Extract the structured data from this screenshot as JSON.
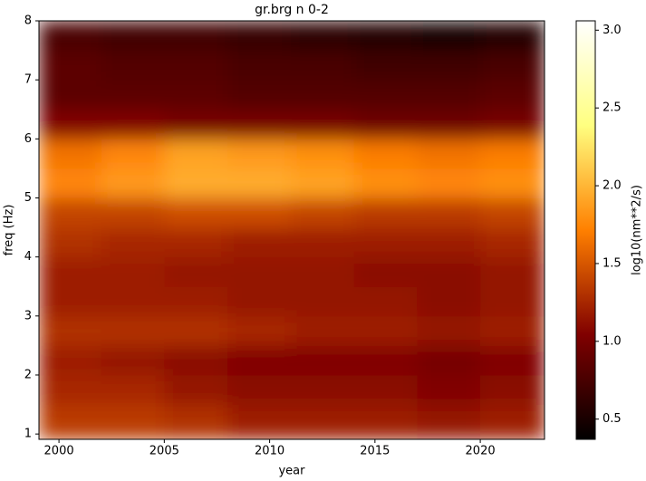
{
  "chart_data": {
    "type": "heatmap",
    "title": "gr.brg n 0-2",
    "x_label": "year",
    "y_label": "freq (Hz)",
    "colorbar_label": "log10(nm**2/s)",
    "colormap": "afmhot",
    "xlim": [
      1999.05,
      2023.05
    ],
    "ylim": [
      0.91,
      8
    ],
    "xticks": [
      2000,
      2005,
      2010,
      2015,
      2020
    ],
    "yticks": [
      1,
      2,
      3,
      4,
      5,
      6,
      7,
      8
    ],
    "clim": [
      0.37,
      3.06
    ],
    "cticks": [
      0.5,
      {
        "value": 1.0,
        "label": "1.0"
      },
      1.5,
      {
        "value": 2.0,
        "label": "2.0"
      },
      2.5,
      {
        "value": 3.0,
        "label": "3.0"
      }
    ],
    "x_edges": [
      1999.05,
      2002,
      2005,
      2008,
      2011,
      2014,
      2017,
      2020,
      2023.05
    ],
    "y_edges": [
      0.91,
      1.5,
      2,
      2.5,
      3,
      3.5,
      4,
      4.5,
      5,
      5.5,
      6,
      6.5,
      7,
      7.5,
      8
    ],
    "z": [
      [
        1.35,
        1.35,
        1.3,
        1.2,
        1.2,
        1.2,
        1.15,
        1.2
      ],
      [
        1.25,
        1.25,
        1.15,
        1.1,
        1.1,
        1.1,
        1.05,
        1.1
      ],
      [
        1.2,
        1.15,
        1.1,
        1.05,
        1.05,
        1.05,
        1.0,
        1.05
      ],
      [
        1.3,
        1.3,
        1.3,
        1.25,
        1.2,
        1.2,
        1.15,
        1.2
      ],
      [
        1.2,
        1.2,
        1.2,
        1.15,
        1.15,
        1.15,
        1.1,
        1.15
      ],
      [
        1.2,
        1.2,
        1.15,
        1.15,
        1.15,
        1.1,
        1.1,
        1.15
      ],
      [
        1.3,
        1.25,
        1.25,
        1.2,
        1.2,
        1.2,
        1.2,
        1.25
      ],
      [
        1.4,
        1.4,
        1.45,
        1.45,
        1.4,
        1.35,
        1.35,
        1.4
      ],
      [
        1.75,
        1.85,
        1.95,
        1.95,
        1.9,
        1.8,
        1.75,
        1.8
      ],
      [
        1.65,
        1.75,
        1.9,
        1.85,
        1.8,
        1.7,
        1.65,
        1.7
      ],
      [
        1.05,
        1.05,
        1.0,
        1.0,
        1.0,
        0.95,
        0.95,
        1.0
      ],
      [
        0.85,
        0.85,
        0.85,
        0.8,
        0.8,
        0.8,
        0.8,
        0.85
      ],
      [
        0.85,
        0.8,
        0.8,
        0.75,
        0.75,
        0.7,
        0.7,
        0.75
      ],
      [
        0.75,
        0.7,
        0.7,
        0.65,
        0.6,
        0.55,
        0.5,
        0.55
      ]
    ]
  }
}
